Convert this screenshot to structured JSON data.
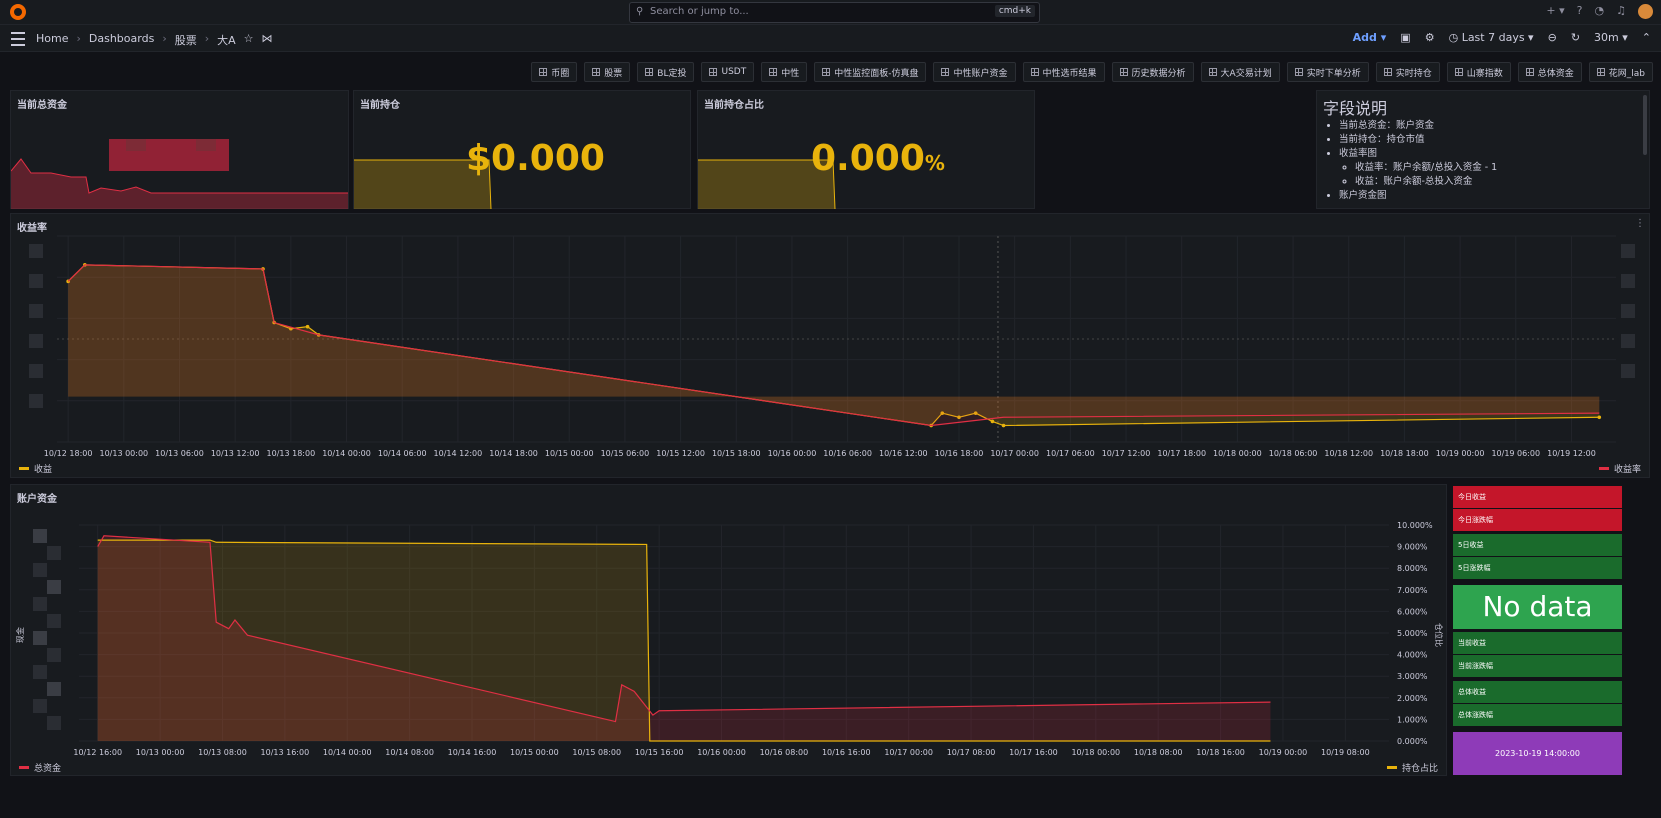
{
  "topbar": {
    "search_placeholder": "Search or jump to...",
    "search_shortcut": "cmd+k",
    "icons": [
      "plus-icon",
      "help-icon",
      "rss-icon",
      "bell-icon",
      "avatar"
    ]
  },
  "nav": {
    "breadcrumbs": [
      "Home",
      "Dashboards",
      "股票",
      "大A"
    ],
    "add_label": "Add",
    "time_range": "Last 7 days",
    "refresh": "30m"
  },
  "links": [
    "币圈",
    "股票",
    "BL定投",
    "USDT",
    "中性",
    "中性监控面板-仿真盘",
    "中性账户资金",
    "中性选币结果",
    "历史数据分析",
    "大A交易计划",
    "实时下单分析",
    "实时持仓",
    "山寨指数",
    "总体资金",
    "花网_lab"
  ],
  "panels": {
    "total_funds": {
      "title": "当前总资金"
    },
    "position": {
      "title": "当前持仓",
      "value": "$0.000"
    },
    "position_ratio": {
      "title": "当前持仓占比",
      "value": "0.000",
      "unit": "%"
    },
    "description": {
      "title": "字段说明",
      "items": [
        "当前总资金：账户资金",
        "当前持仓：持仓市值",
        "收益率图"
      ],
      "sub_items": [
        "收益率：账户余额/总投入资金 - 1",
        "收益：账户余额-总投入资金"
      ],
      "cut_item": "账户资金图"
    },
    "returns": {
      "title": "收益率",
      "legend_left": "收益",
      "legend_right": "收益率"
    },
    "account": {
      "title": "账户资金",
      "y_left_label": "现金",
      "y_right_label": "仓位比",
      "legend_left": "总资金",
      "legend_right": "持仓占比"
    }
  },
  "tiles": {
    "today_return": "今日收益",
    "today_change": "今日涨跌幅",
    "five_day_return": "5日收益",
    "five_day_change": "5日涨跌幅",
    "no_data": "No data",
    "current_return": "当前收益",
    "current_change": "当前涨跌幅",
    "total_return": "总体收益",
    "total_change": "总体涨跌幅",
    "date": "2023-10-19 14:00:00"
  },
  "colors": {
    "accent_yellow": "#e8b30c",
    "red": "#e02f44",
    "green": "#2ea44f",
    "purple": "#8e3bb8"
  },
  "chart_data": [
    {
      "type": "line",
      "title": "收益率",
      "x": [
        "10/12 18:00",
        "10/13 00:00",
        "10/13 06:00",
        "10/13 12:00",
        "10/13 18:00",
        "10/14 00:00",
        "10/14 06:00",
        "10/14 12:00",
        "10/14 18:00",
        "10/15 00:00",
        "10/15 06:00",
        "10/15 12:00",
        "10/15 18:00",
        "10/16 00:00",
        "10/16 06:00",
        "10/16 12:00",
        "10/16 18:00",
        "10/17 00:00",
        "10/17 06:00",
        "10/17 12:00",
        "10/17 18:00",
        "10/18 00:00",
        "10/18 06:00",
        "10/18 12:00",
        "10/18 18:00",
        "10/19 00:00",
        "10/19 06:00",
        "10/19 12:00"
      ],
      "series": [
        {
          "name": "收益",
          "color": "#e8b30c",
          "points": [
            [
              0,
              0.78
            ],
            [
              0.3,
              0.86
            ],
            [
              3.5,
              0.84
            ],
            [
              3.7,
              0.58
            ],
            [
              4.0,
              0.55
            ],
            [
              4.3,
              0.56
            ],
            [
              4.5,
              0.52
            ],
            [
              15.5,
              0.08
            ],
            [
              15.7,
              0.14
            ],
            [
              16.0,
              0.12
            ],
            [
              16.3,
              0.14
            ],
            [
              16.6,
              0.1
            ],
            [
              16.8,
              0.08
            ],
            [
              27.5,
              0.12
            ]
          ]
        },
        {
          "name": "收益率",
          "color": "#e02f44",
          "points": [
            [
              0,
              0.78
            ],
            [
              0.3,
              0.86
            ],
            [
              3.5,
              0.84
            ],
            [
              3.7,
              0.58
            ],
            [
              4.5,
              0.52
            ],
            [
              15.5,
              0.08
            ],
            [
              16.8,
              0.12
            ],
            [
              27.5,
              0.14
            ]
          ]
        }
      ]
    },
    {
      "type": "line",
      "title": "账户资金",
      "x": [
        "10/12 16:00",
        "10/13 00:00",
        "10/13 08:00",
        "10/13 16:00",
        "10/14 00:00",
        "10/14 08:00",
        "10/14 16:00",
        "10/15 00:00",
        "10/15 08:00",
        "10/15 16:00",
        "10/16 00:00",
        "10/16 08:00",
        "10/16 16:00",
        "10/17 00:00",
        "10/17 08:00",
        "10/17 16:00",
        "10/18 00:00",
        "10/18 08:00",
        "10/18 16:00",
        "10/19 00:00",
        "10/19 08:00"
      ],
      "y_right_ticks": [
        "0.000%",
        "1.000%",
        "2.000%",
        "3.000%",
        "4.000%",
        "5.000%",
        "6.000%",
        "7.000%",
        "8.000%",
        "9.000%",
        "10.000%"
      ],
      "series": [
        {
          "name": "总资金",
          "color": "#e02f44",
          "points": [
            [
              0,
              0.9
            ],
            [
              0.1,
              0.95
            ],
            [
              1.8,
              0.92
            ],
            [
              1.9,
              0.55
            ],
            [
              2.1,
              0.52
            ],
            [
              2.2,
              0.56
            ],
            [
              2.4,
              0.49
            ],
            [
              8.3,
              0.09
            ],
            [
              8.4,
              0.26
            ],
            [
              8.6,
              0.23
            ],
            [
              8.9,
              0.12
            ],
            [
              9.0,
              0.14
            ],
            [
              18.8,
              0.18
            ]
          ]
        },
        {
          "name": "持仓占比",
          "color": "#e8b30c",
          "axis": "right",
          "values_pct": [
            [
              0,
              9.3
            ],
            [
              1.8,
              9.3
            ],
            [
              1.9,
              9.2
            ],
            [
              8.8,
              9.1
            ],
            [
              8.85,
              0.0
            ],
            [
              18.8,
              0.0
            ]
          ]
        }
      ]
    }
  ]
}
